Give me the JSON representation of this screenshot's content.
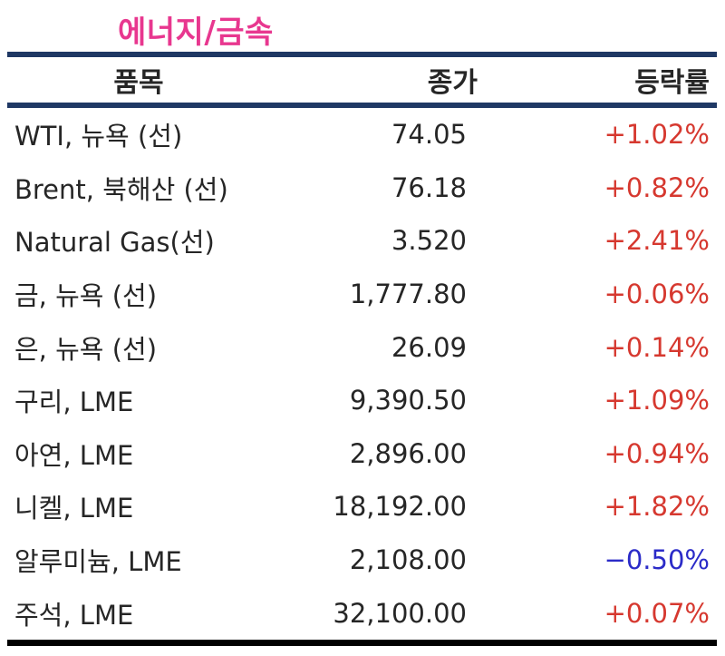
{
  "title": "에너지/금속",
  "colors": {
    "title": "#e8378f",
    "navy_line": "#1f3864",
    "black_line": "#000000",
    "text": "#262626",
    "up": "#d6382f",
    "down": "#2b2bc8"
  },
  "table": {
    "headers": [
      "품목",
      "종가",
      "등락률"
    ],
    "rows": [
      {
        "name": "WTI, 뉴욕 (선)",
        "close": "74.05",
        "change": "+1.02%",
        "direction": "up"
      },
      {
        "name": "Brent, 북해산 (선)",
        "close": "76.18",
        "change": "+0.82%",
        "direction": "up"
      },
      {
        "name": "Natural Gas(선)",
        "close": "3.520",
        "change": "+2.41%",
        "direction": "up"
      },
      {
        "name": "금, 뉴욕 (선)",
        "close": "1,777.80",
        "change": "+0.06%",
        "direction": "up"
      },
      {
        "name": "은, 뉴욕 (선)",
        "close": "26.09",
        "change": "+0.14%",
        "direction": "up"
      },
      {
        "name": "구리, LME",
        "close": "9,390.50",
        "change": "+1.09%",
        "direction": "up"
      },
      {
        "name": "아연, LME",
        "close": "2,896.00",
        "change": "+0.94%",
        "direction": "up"
      },
      {
        "name": "니켈, LME",
        "close": "18,192.00",
        "change": "+1.82%",
        "direction": "up"
      },
      {
        "name": "알루미늄, LME",
        "close": "2,108.00",
        "change": "−0.50%",
        "direction": "down"
      },
      {
        "name": "주석, LME",
        "close": "32,100.00",
        "change": "+0.07%",
        "direction": "up"
      }
    ]
  },
  "chart_data": {
    "type": "table",
    "title": "에너지/금속",
    "columns": [
      "품목",
      "종가",
      "등락률"
    ],
    "rows": [
      [
        "WTI, 뉴욕 (선)",
        74.05,
        "+1.02%"
      ],
      [
        "Brent, 북해산 (선)",
        76.18,
        "+0.82%"
      ],
      [
        "Natural Gas(선)",
        3.52,
        "+2.41%"
      ],
      [
        "금, 뉴욕 (선)",
        1777.8,
        "+0.06%"
      ],
      [
        "은, 뉴욕 (선)",
        26.09,
        "+0.14%"
      ],
      [
        "구리, LME",
        9390.5,
        "+1.09%"
      ],
      [
        "아연, LME",
        2896.0,
        "+0.94%"
      ],
      [
        "니켈, LME",
        18192.0,
        "+1.82%"
      ],
      [
        "알루미늄, LME",
        2108.0,
        "-0.50%"
      ],
      [
        "주석, LME",
        32100.0,
        "+0.07%"
      ]
    ]
  }
}
